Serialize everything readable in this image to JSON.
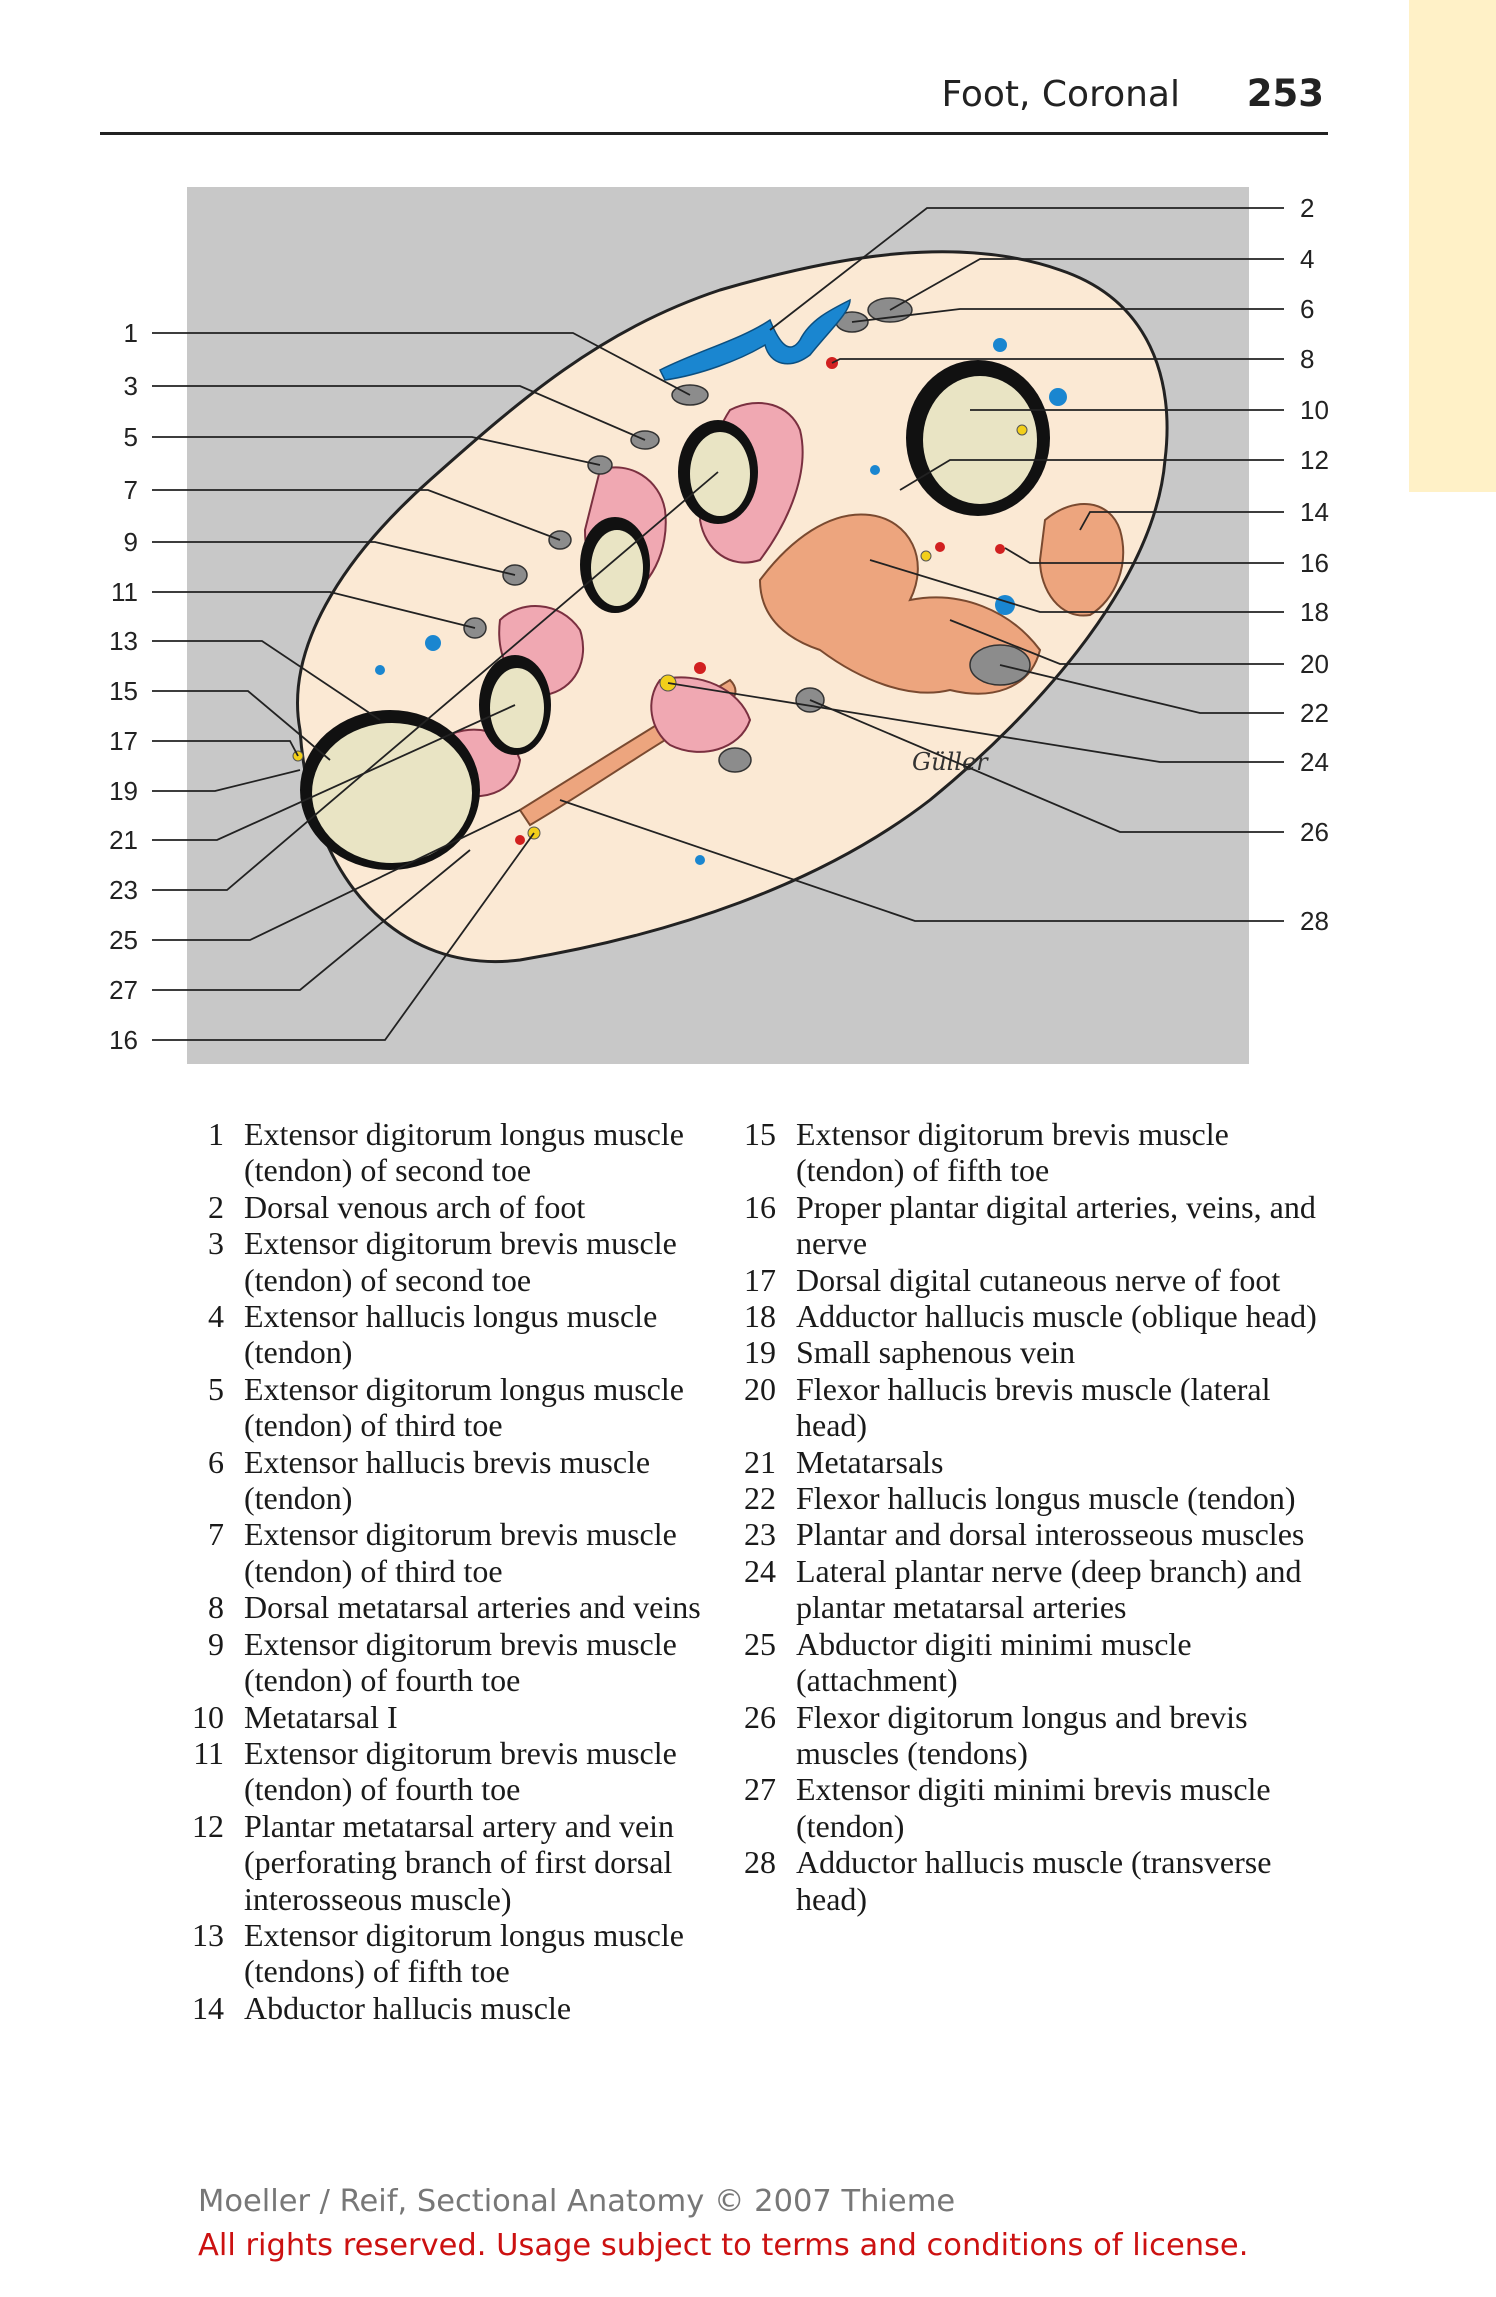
{
  "header": {
    "title": "Foot, Coronal",
    "page_number": "253"
  },
  "figure": {
    "labels_left": [
      "1",
      "3",
      "5",
      "7",
      "9",
      "11",
      "13",
      "15",
      "17",
      "19",
      "21",
      "23",
      "25",
      "27",
      "16"
    ],
    "labels_right": [
      "2",
      "4",
      "6",
      "8",
      "10",
      "12",
      "14",
      "16",
      "18",
      "20",
      "22",
      "24",
      "26",
      "28"
    ],
    "signature": "Güller",
    "colors": {
      "background_gray": "#c8c8c8",
      "soft_tissue": "#fbe9d4",
      "bone_marrow": "#e9e4c4",
      "cortex": "#111111",
      "muscle_pink": "#f0a8b2",
      "muscle_orange": "#eda57e",
      "vein_blue": "#1a86d0",
      "tendon_gray": "#8c8c8c",
      "artery_red": "#d12020",
      "nerve_yellow": "#f2cf1a"
    }
  },
  "legend": {
    "column1": [
      {
        "num": "1",
        "text": "Extensor digitorum longus muscle (tendon) of second toe"
      },
      {
        "num": "2",
        "text": "Dorsal venous arch of foot"
      },
      {
        "num": "3",
        "text": "Extensor digitorum brevis muscle (tendon) of second toe"
      },
      {
        "num": "4",
        "text": "Extensor hallucis longus muscle (tendon)"
      },
      {
        "num": "5",
        "text": "Extensor digitorum longus muscle (tendon) of third toe"
      },
      {
        "num": "6",
        "text": "Extensor hallucis brevis muscle (tendon)"
      },
      {
        "num": "7",
        "text": "Extensor digitorum brevis muscle (tendon) of third toe"
      },
      {
        "num": "8",
        "text": "Dorsal metatarsal arteries and veins"
      },
      {
        "num": "9",
        "text": "Extensor digitorum brevis muscle (tendon) of fourth toe"
      },
      {
        "num": "10",
        "text": "Metatarsal I"
      },
      {
        "num": "11",
        "text": "Extensor digitorum brevis muscle (tendon) of fourth toe"
      },
      {
        "num": "12",
        "text": "Plantar metatarsal artery and vein (perforating branch of first dorsal interosseous muscle)"
      },
      {
        "num": "13",
        "text": "Extensor digitorum longus muscle (tendons) of fifth toe"
      },
      {
        "num": "14",
        "text": "Abductor hallucis muscle"
      }
    ],
    "column2": [
      {
        "num": "15",
        "text": "Extensor digitorum brevis muscle (tendon) of fifth toe"
      },
      {
        "num": "16",
        "text": "Proper plantar digital arteries, veins, and nerve"
      },
      {
        "num": "17",
        "text": "Dorsal digital cutaneous nerve of foot"
      },
      {
        "num": "18",
        "text": "Adductor hallucis muscle (oblique head)"
      },
      {
        "num": "19",
        "text": "Small saphenous vein"
      },
      {
        "num": "20",
        "text": "Flexor hallucis brevis muscle (lateral head)"
      },
      {
        "num": "21",
        "text": "Metatarsals"
      },
      {
        "num": "22",
        "text": "Flexor hallucis longus muscle (tendon)"
      },
      {
        "num": "23",
        "text": "Plantar and dorsal interosseous muscles"
      },
      {
        "num": "24",
        "text": "Lateral plantar nerve (deep branch) and plantar metatarsal arteries"
      },
      {
        "num": "25",
        "text": "Abductor digiti minimi muscle (attachment)"
      },
      {
        "num": "26",
        "text": "Flexor digitorum longus and brevis muscles (tendons)"
      },
      {
        "num": "27",
        "text": "Extensor digiti minimi brevis muscle (tendon)"
      },
      {
        "num": "28",
        "text": "Adductor hallucis muscle (transverse head)"
      }
    ]
  },
  "footer": {
    "credit": "Moeller / Reif, Sectional Anatomy © 2007 Thieme",
    "license": "All rights reserved. Usage subject to terms and conditions of license."
  }
}
